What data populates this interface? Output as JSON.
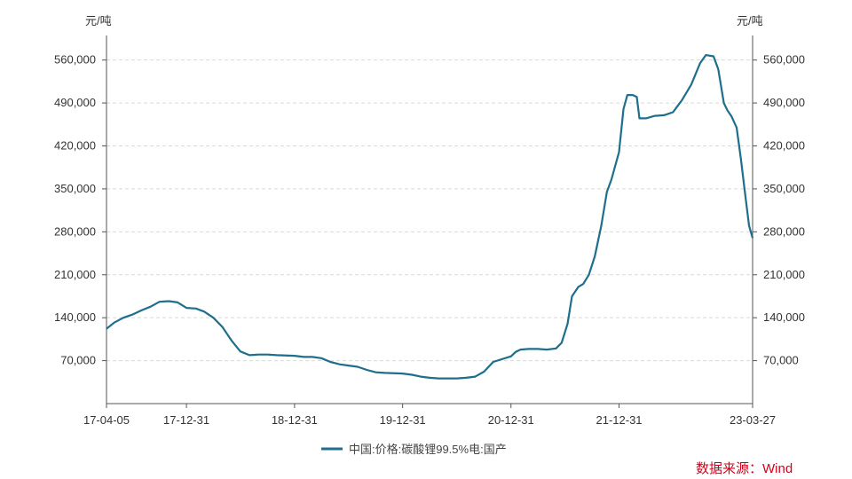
{
  "chart_data": {
    "type": "line",
    "y_unit_left": "元/吨",
    "y_unit_right": "元/吨",
    "ylim": [
      0,
      600000
    ],
    "y_ticks": [
      70000,
      140000,
      210000,
      280000,
      350000,
      420000,
      490000,
      560000
    ],
    "y_tick_labels": [
      "70,000",
      "140,000",
      "210,000",
      "280,000",
      "350,000",
      "420,000",
      "490,000",
      "560,000"
    ],
    "x_tick_labels": [
      "17-04-05",
      "17-12-31",
      "18-12-31",
      "19-12-31",
      "20-12-31",
      "21-12-31",
      "23-03-27"
    ],
    "x_ticks": [
      "2017-04-05",
      "2017-12-31",
      "2018-12-31",
      "2019-12-31",
      "2020-12-31",
      "2021-12-31",
      "2023-03-27"
    ],
    "xlim": [
      "2017-04-05",
      "2023-03-27"
    ],
    "grid": true,
    "legend_position": "bottom",
    "series": [
      {
        "name": "中国:价格:碳酸锂99.5%电:国产",
        "color": "#1f6e8c",
        "points": [
          [
            "2017-04-05",
            122000
          ],
          [
            "2017-05-01",
            132000
          ],
          [
            "2017-06-01",
            140000
          ],
          [
            "2017-07-01",
            145000
          ],
          [
            "2017-08-01",
            152000
          ],
          [
            "2017-09-01",
            158000
          ],
          [
            "2017-10-01",
            166000
          ],
          [
            "2017-11-01",
            167000
          ],
          [
            "2017-12-01",
            165000
          ],
          [
            "2017-12-31",
            156000
          ],
          [
            "2018-02-01",
            155000
          ],
          [
            "2018-03-01",
            150000
          ],
          [
            "2018-04-01",
            140000
          ],
          [
            "2018-05-01",
            125000
          ],
          [
            "2018-06-01",
            103000
          ],
          [
            "2018-07-01",
            85000
          ],
          [
            "2018-08-01",
            79000
          ],
          [
            "2018-09-01",
            80000
          ],
          [
            "2018-10-01",
            80000
          ],
          [
            "2018-11-01",
            79000
          ],
          [
            "2018-12-31",
            78000
          ],
          [
            "2019-02-01",
            76000
          ],
          [
            "2019-03-01",
            76000
          ],
          [
            "2019-04-01",
            74000
          ],
          [
            "2019-05-01",
            68000
          ],
          [
            "2019-06-01",
            64000
          ],
          [
            "2019-07-01",
            62000
          ],
          [
            "2019-08-01",
            60000
          ],
          [
            "2019-09-01",
            55000
          ],
          [
            "2019-10-01",
            51000
          ],
          [
            "2019-11-01",
            50000
          ],
          [
            "2019-12-31",
            49000
          ],
          [
            "2020-02-01",
            47000
          ],
          [
            "2020-03-01",
            44000
          ],
          [
            "2020-04-01",
            42000
          ],
          [
            "2020-05-01",
            41000
          ],
          [
            "2020-06-01",
            41000
          ],
          [
            "2020-07-01",
            41000
          ],
          [
            "2020-08-01",
            42000
          ],
          [
            "2020-09-01",
            44000
          ],
          [
            "2020-10-01",
            52000
          ],
          [
            "2020-11-01",
            68000
          ],
          [
            "2020-12-31",
            77000
          ],
          [
            "2021-01-15",
            84000
          ],
          [
            "2021-02-01",
            88000
          ],
          [
            "2021-03-01",
            89000
          ],
          [
            "2021-04-01",
            89000
          ],
          [
            "2021-05-01",
            88000
          ],
          [
            "2021-06-01",
            90000
          ],
          [
            "2021-06-20",
            99000
          ],
          [
            "2021-07-10",
            130000
          ],
          [
            "2021-07-25",
            175000
          ],
          [
            "2021-08-15",
            190000
          ],
          [
            "2021-09-01",
            195000
          ],
          [
            "2021-09-20",
            210000
          ],
          [
            "2021-10-10",
            240000
          ],
          [
            "2021-11-01",
            290000
          ],
          [
            "2021-11-20",
            345000
          ],
          [
            "2021-12-05",
            365000
          ],
          [
            "2021-12-31",
            410000
          ],
          [
            "2022-01-15",
            480000
          ],
          [
            "2022-01-28",
            503000
          ],
          [
            "2022-02-15",
            503000
          ],
          [
            "2022-03-01",
            500000
          ],
          [
            "2022-03-10",
            465000
          ],
          [
            "2022-04-01",
            465000
          ],
          [
            "2022-05-01",
            469000
          ],
          [
            "2022-06-01",
            470000
          ],
          [
            "2022-07-01",
            475000
          ],
          [
            "2022-08-01",
            495000
          ],
          [
            "2022-09-01",
            520000
          ],
          [
            "2022-10-01",
            555000
          ],
          [
            "2022-10-20",
            568000
          ],
          [
            "2022-11-15",
            566000
          ],
          [
            "2022-12-01",
            545000
          ],
          [
            "2022-12-20",
            490000
          ],
          [
            "2023-01-01",
            478000
          ],
          [
            "2023-01-15",
            468000
          ],
          [
            "2023-02-01",
            450000
          ],
          [
            "2023-02-15",
            400000
          ],
          [
            "2023-03-01",
            345000
          ],
          [
            "2023-03-15",
            290000
          ],
          [
            "2023-03-27",
            270000
          ]
        ]
      }
    ]
  },
  "source": "数据来源：Wind"
}
